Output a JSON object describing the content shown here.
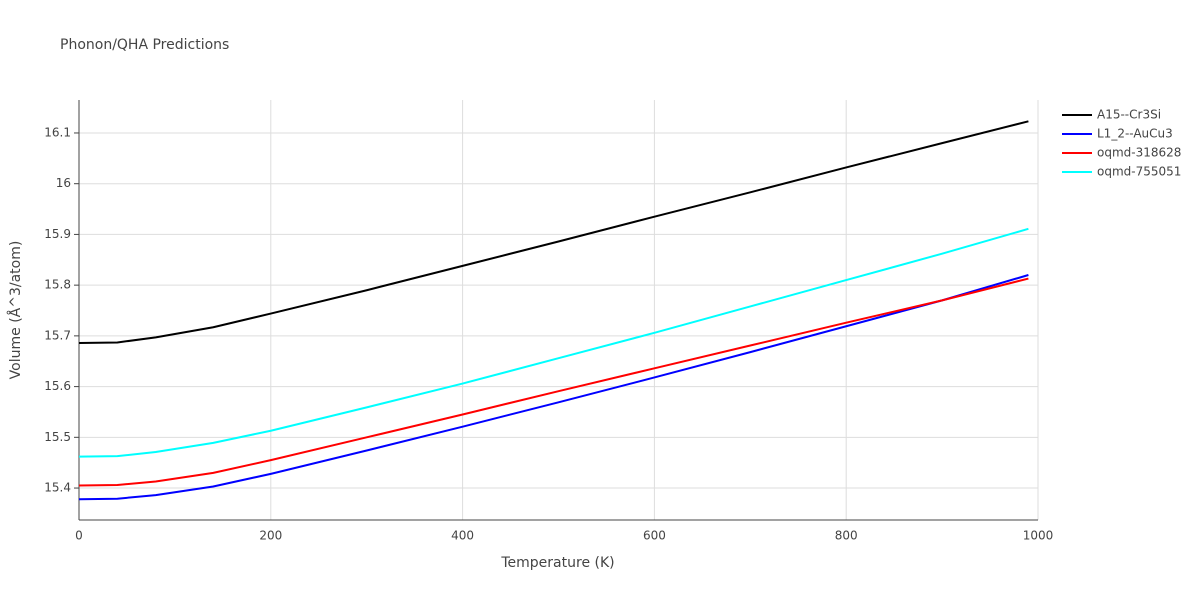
{
  "chart_data": {
    "type": "line",
    "title": "Phonon/QHA Predictions",
    "x_label": "Temperature (K)",
    "y_label": "Volume (Å^3/atom)",
    "x": [
      0,
      40,
      80,
      140,
      200,
      300,
      400,
      500,
      600,
      700,
      800,
      900,
      990
    ],
    "series": [
      {
        "name": "A15--Cr3Si",
        "color": "#000000",
        "values": [
          15.686,
          15.687,
          15.697,
          15.717,
          15.744,
          15.79,
          15.838,
          15.886,
          15.935,
          15.983,
          16.032,
          16.08,
          16.123
        ]
      },
      {
        "name": "L1_2--AuCu3",
        "color": "#0000ff",
        "values": [
          15.378,
          15.379,
          15.386,
          15.403,
          15.428,
          15.474,
          15.521,
          15.569,
          15.618,
          15.668,
          15.719,
          15.77,
          15.82
        ]
      },
      {
        "name": "oqmd-318628",
        "color": "#ff0000",
        "values": [
          15.405,
          15.406,
          15.413,
          15.43,
          15.455,
          15.5,
          15.545,
          15.591,
          15.636,
          15.681,
          15.726,
          15.77,
          15.813
        ]
      },
      {
        "name": "oqmd-755051",
        "color": "#00ffff",
        "values": [
          15.462,
          15.463,
          15.471,
          15.489,
          15.513,
          15.559,
          15.606,
          15.656,
          15.706,
          15.758,
          15.81,
          15.862,
          15.911
        ]
      }
    ],
    "xlim": [
      0,
      1000
    ],
    "xticks": [
      0,
      200,
      400,
      600,
      800,
      1000
    ],
    "ylim": [
      15.337,
      16.165
    ],
    "yticks": [
      15.4,
      15.5,
      15.6,
      15.7,
      15.8,
      15.9,
      16,
      16.1
    ],
    "grid": true,
    "legend": "right"
  }
}
